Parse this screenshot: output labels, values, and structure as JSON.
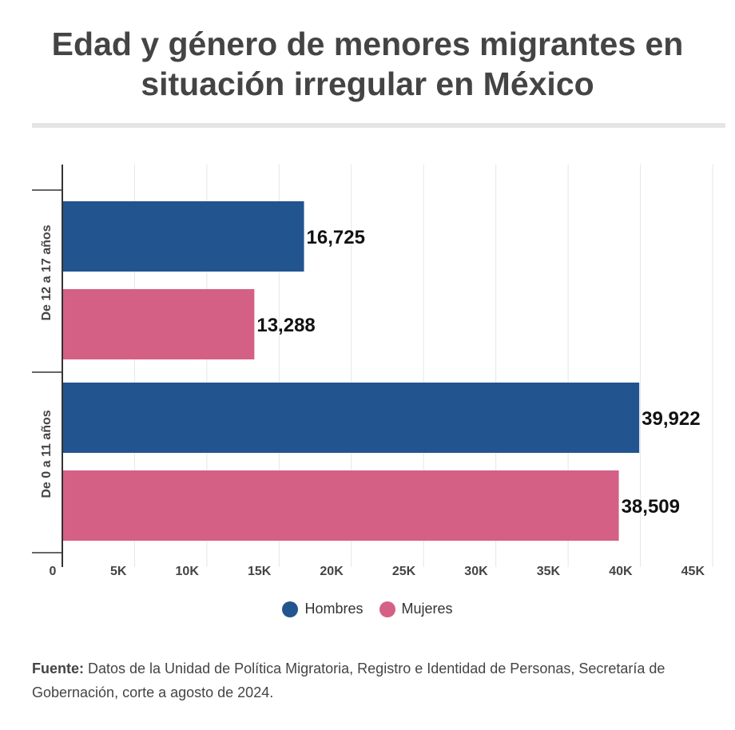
{
  "title": {
    "line1": "Edad y género de menores migrantes en",
    "line2": "situación irregular en México"
  },
  "chart_data": {
    "type": "bar",
    "orientation": "horizontal",
    "categories": [
      "De 12 a 17 años",
      "De 0 a 11 años"
    ],
    "series": [
      {
        "name": "Hombres",
        "color": "#22548f",
        "values": [
          16725,
          39922
        ],
        "labels": [
          "16,725",
          "39,922"
        ]
      },
      {
        "name": "Mujeres",
        "color": "#d46085",
        "values": [
          13288,
          38509
        ],
        "labels": [
          "13,288",
          "38,509"
        ]
      }
    ],
    "xlim": [
      0,
      45000
    ],
    "xticks": [
      0,
      5000,
      10000,
      15000,
      20000,
      25000,
      30000,
      35000,
      40000,
      45000
    ],
    "xtick_labels": [
      "0",
      "5K",
      "10K",
      "15K",
      "20K",
      "25K",
      "30K",
      "35K",
      "40K",
      "45K"
    ],
    "xlabel": "",
    "ylabel": "",
    "grid": true,
    "legend_position": "bottom-center"
  },
  "legend": {
    "items": [
      {
        "label": "Hombres",
        "color": "#22548f"
      },
      {
        "label": "Mujeres",
        "color": "#d46085"
      }
    ]
  },
  "source": {
    "label": "Fuente:",
    "text": " Datos de la Unidad de Política Migratoria, Registro e Identidad de Personas, Secretaría de Gobernación, corte a agosto de 2024."
  }
}
